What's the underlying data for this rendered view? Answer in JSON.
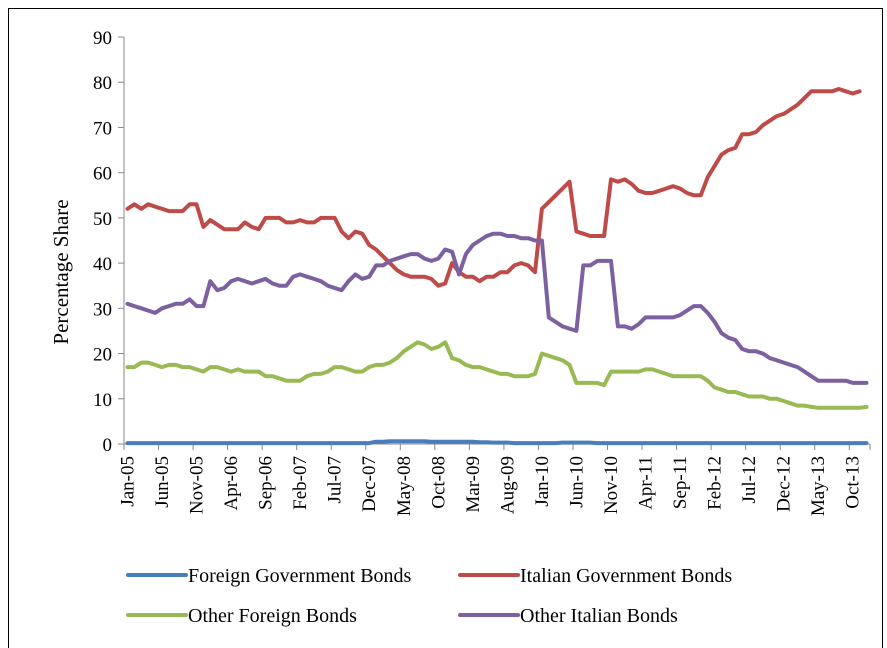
{
  "chart_data": {
    "type": "line",
    "title": "",
    "xlabel": "",
    "ylabel": "Percentage Share",
    "ylim": [
      0,
      90
    ],
    "yticks": [
      0,
      10,
      20,
      30,
      40,
      50,
      60,
      70,
      80,
      90
    ],
    "grid": false,
    "legend": "bottom",
    "xtick_labels": [
      "Jan-05",
      "Jun-05",
      "Nov-05",
      "Apr-06",
      "Sep-06",
      "Feb-07",
      "Jul-07",
      "Dec-07",
      "May-08",
      "Oct-08",
      "Mar-09",
      "Aug-09",
      "Jan-10",
      "Jun-10",
      "Nov-10",
      "Apr-11",
      "Sep-11",
      "Feb-12",
      "Jul-12",
      "Dec-12",
      "May-13",
      "Oct-13"
    ],
    "x_range": [
      "Jan-05",
      "Jan-14"
    ],
    "series": [
      {
        "name": "Foreign Government Bonds",
        "color": "#4a7ebb",
        "values": [
          0.2,
          0.2,
          0.2,
          0.2,
          0.2,
          0.2,
          0.2,
          0.2,
          0.2,
          0.2,
          0.2,
          0.2,
          0.2,
          0.2,
          0.2,
          0.2,
          0.2,
          0.2,
          0.2,
          0.2,
          0.2,
          0.2,
          0.2,
          0.2,
          0.2,
          0.2,
          0.2,
          0.2,
          0.2,
          0.2,
          0.2,
          0.2,
          0.2,
          0.2,
          0.2,
          0.2,
          0.5,
          0.5,
          0.6,
          0.6,
          0.6,
          0.6,
          0.6,
          0.6,
          0.5,
          0.5,
          0.5,
          0.5,
          0.5,
          0.5,
          0.5,
          0.4,
          0.4,
          0.3,
          0.3,
          0.3,
          0.2,
          0.2,
          0.2,
          0.2,
          0.2,
          0.2,
          0.2,
          0.3,
          0.3,
          0.3,
          0.3,
          0.3,
          0.2,
          0.2,
          0.2,
          0.2,
          0.2,
          0.2,
          0.2,
          0.2,
          0.2,
          0.2,
          0.2,
          0.2,
          0.2,
          0.2,
          0.2,
          0.2,
          0.2,
          0.2,
          0.2,
          0.2,
          0.2,
          0.2,
          0.2,
          0.2,
          0.2,
          0.2,
          0.2,
          0.2,
          0.2,
          0.2,
          0.2,
          0.2,
          0.2,
          0.2,
          0.2,
          0.2,
          0.2,
          0.2,
          0.2,
          0.2
        ]
      },
      {
        "name": "Italian Government Bonds",
        "color": "#be4b48",
        "values": [
          52,
          53,
          52,
          53,
          52.5,
          52,
          51.5,
          51.5,
          51.5,
          53,
          53,
          48,
          49.5,
          48.5,
          47.5,
          47.5,
          47.5,
          49,
          48,
          47.5,
          50,
          50,
          50,
          49,
          49,
          49.5,
          49,
          49,
          50,
          50,
          50,
          47,
          45.5,
          47,
          46.5,
          44,
          43,
          41.5,
          40,
          38.5,
          37.5,
          37,
          37,
          37,
          36.5,
          35,
          35.5,
          40,
          38,
          37,
          37,
          36,
          37,
          37,
          38,
          38,
          39.5,
          40,
          39.5,
          38,
          52,
          53.5,
          55,
          56.5,
          58,
          47,
          46.5,
          46,
          46,
          46,
          58.5,
          58,
          58.5,
          57.5,
          56,
          55.5,
          55.5,
          56,
          56.5,
          57,
          56.5,
          55.5,
          55,
          55,
          59,
          61.5,
          64,
          65,
          65.5,
          68.5,
          68.5,
          69,
          70.5,
          71.5,
          72.5,
          73,
          74,
          75,
          76.5,
          78,
          78,
          78,
          78,
          78.5,
          78,
          77.5,
          78
        ]
      },
      {
        "name": "Other Foreign Bonds",
        "color": "#98b954",
        "values": [
          17,
          17,
          18,
          18,
          17.5,
          17,
          17.5,
          17.5,
          17,
          17,
          16.5,
          16,
          17,
          17,
          16.5,
          16,
          16.5,
          16,
          16,
          16,
          15,
          15,
          14.5,
          14,
          14,
          14,
          15,
          15.5,
          15.5,
          16,
          17,
          17,
          16.5,
          16,
          16,
          17,
          17.5,
          17.5,
          18,
          19,
          20.5,
          21.5,
          22.5,
          22,
          21,
          21.5,
          22.5,
          19,
          18.5,
          17.5,
          17,
          17,
          16.5,
          16,
          15.5,
          15.5,
          15,
          15,
          15,
          15.5,
          20,
          19.5,
          19,
          18.5,
          17.5,
          13.5,
          13.5,
          13.5,
          13.5,
          13,
          16,
          16,
          16,
          16,
          16,
          16.5,
          16.5,
          16,
          15.5,
          15,
          15,
          15,
          15,
          15,
          14,
          12.5,
          12,
          11.5,
          11.5,
          11,
          10.5,
          10.5,
          10.5,
          10,
          10,
          9.5,
          9,
          8.5,
          8.5,
          8.2,
          8,
          8,
          8,
          8,
          8,
          8,
          8,
          8.2
        ]
      },
      {
        "name": "Other Italian Bonds",
        "color": "#7d60a0",
        "values": [
          31,
          30.5,
          30,
          29.5,
          29,
          30,
          30.5,
          31,
          31,
          32,
          30.5,
          30.5,
          36,
          34,
          34.5,
          36,
          36.5,
          36,
          35.5,
          36,
          36.5,
          35.5,
          35,
          35,
          37,
          37.5,
          37,
          36.5,
          36,
          35,
          34.5,
          34,
          36,
          37.5,
          36.5,
          37,
          39.5,
          39.5,
          40.5,
          41,
          41.5,
          42,
          42,
          41,
          40.5,
          41,
          43,
          42.5,
          37.5,
          42,
          44,
          45,
          46,
          46.5,
          46.5,
          46,
          46,
          45.5,
          45.5,
          45,
          45,
          28,
          27,
          26,
          25.5,
          25,
          39.5,
          39.5,
          40.5,
          40.5,
          40.5,
          26,
          26,
          25.5,
          26.5,
          28,
          28,
          28,
          28,
          28,
          28.5,
          29.5,
          30.5,
          30.5,
          29,
          27,
          24.5,
          23.5,
          23,
          21,
          20.5,
          20.5,
          20,
          19,
          18.5,
          18,
          17.5,
          17,
          16,
          15,
          14,
          14,
          14,
          14,
          14,
          13.5,
          13.5,
          13.5
        ]
      }
    ]
  }
}
